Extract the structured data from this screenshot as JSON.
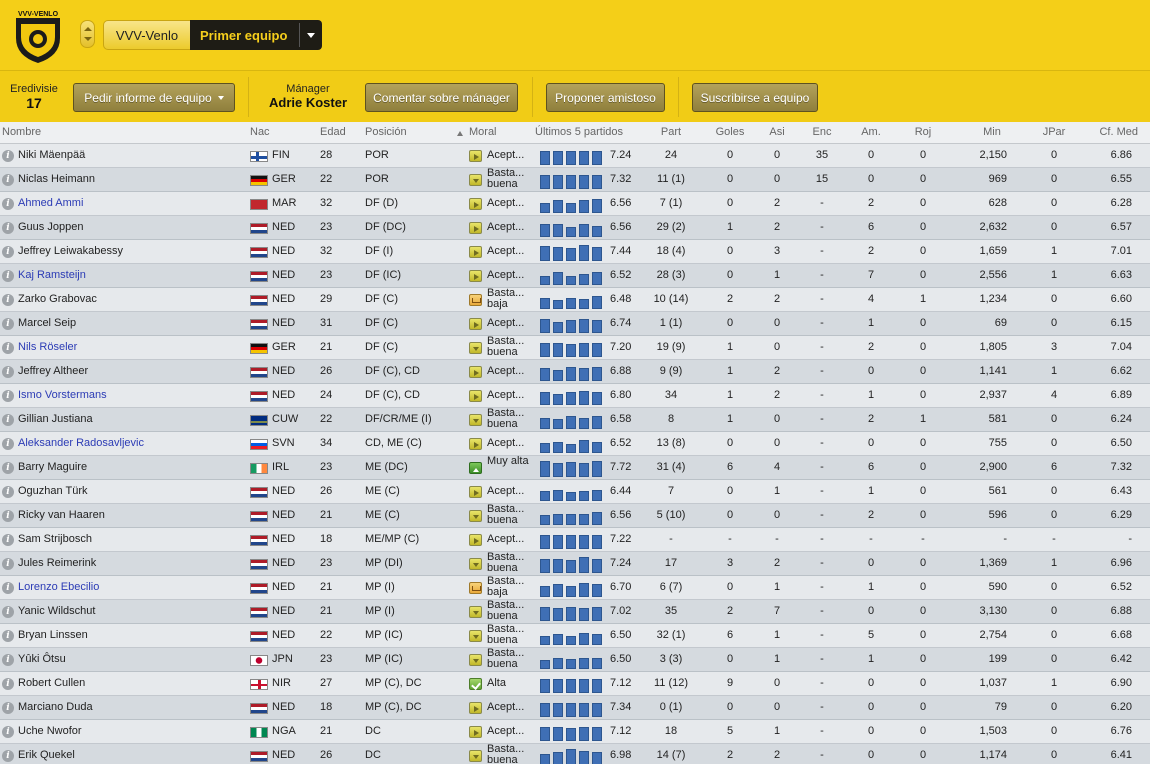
{
  "header": {
    "crest_text": "VVV-VENLO",
    "club_name": "VVV-Venlo",
    "team_selector": "Primer equipo",
    "league_name": "Eredivisie",
    "league_position": "17",
    "team_report_button": "Pedir informe de equipo",
    "manager_title": "Mánager",
    "manager_name": "Adrie Koster",
    "comment_manager_button": "Comentar sobre mánager",
    "propose_friendly_button": "Proponer amistoso",
    "subscribe_button": "Suscribirse a equipo",
    "colors": {
      "bar": "#f4cf18",
      "dark": "#1e1c15",
      "button": "#8f7f3c"
    }
  },
  "columns": {
    "name": "Nombre",
    "nat": "Nac",
    "age": "Edad",
    "position": "Posición",
    "moral": "Moral",
    "last5": "Últimos 5 partidos",
    "apps": "Part",
    "goals": "Goles",
    "assists": "Asi",
    "clean": "Enc",
    "yellow": "Am.",
    "red": "Roj",
    "minutes": "Min",
    "pom": "JPar",
    "avg": "Cf. Med"
  },
  "players": [
    {
      "name": "Niki Mäenpää",
      "link": false,
      "nat": "FIN",
      "flag": "fin",
      "age": "28",
      "pos": "POR",
      "moral": "Acept...",
      "micon": "acc",
      "bars": [
        0.8,
        0.8,
        0.8,
        0.8,
        0.8
      ],
      "last5": "7.24",
      "apps": "24",
      "goals": "0",
      "assists": "0",
      "clean": "35",
      "yellow": "0",
      "red": "0",
      "min": "2,150",
      "pom": "0",
      "avg": "6.86"
    },
    {
      "name": "Niclas Heimann",
      "link": false,
      "nat": "GER",
      "flag": "ger",
      "age": "22",
      "pos": "POR",
      "moral": "Basta... buena",
      "micon": "buena",
      "bars": [
        0.8,
        0.8,
        0.8,
        0.8,
        0.8
      ],
      "last5": "7.32",
      "apps": "11 (1)",
      "goals": "0",
      "assists": "0",
      "clean": "15",
      "yellow": "0",
      "red": "0",
      "min": "969",
      "pom": "0",
      "avg": "6.55"
    },
    {
      "name": "Ahmed Ammi",
      "link": true,
      "nat": "MAR",
      "flag": "mar",
      "age": "32",
      "pos": "DF (D)",
      "moral": "Acept...",
      "micon": "acc",
      "bars": [
        0.55,
        0.7,
        0.55,
        0.7,
        0.8
      ],
      "last5": "6.56",
      "apps": "7 (1)",
      "goals": "0",
      "assists": "2",
      "clean": "-",
      "yellow": "2",
      "red": "0",
      "min": "628",
      "pom": "0",
      "avg": "6.28"
    },
    {
      "name": "Guus Joppen",
      "link": false,
      "nat": "NED",
      "flag": "ned",
      "age": "23",
      "pos": "DF (DC)",
      "moral": "Acept...",
      "micon": "acc",
      "bars": [
        0.7,
        0.7,
        0.55,
        0.7,
        0.6
      ],
      "last5": "6.56",
      "apps": "29 (2)",
      "goals": "1",
      "assists": "2",
      "clean": "-",
      "yellow": "6",
      "red": "0",
      "min": "2,632",
      "pom": "0",
      "avg": "6.57"
    },
    {
      "name": "Jeffrey Leiwakabessy",
      "link": false,
      "nat": "NED",
      "flag": "ned",
      "age": "32",
      "pos": "DF (I)",
      "moral": "Acept...",
      "micon": "acc",
      "bars": [
        0.85,
        0.8,
        0.7,
        0.9,
        0.8
      ],
      "last5": "7.44",
      "apps": "18 (4)",
      "goals": "0",
      "assists": "3",
      "clean": "-",
      "yellow": "2",
      "red": "0",
      "min": "1,659",
      "pom": "1",
      "avg": "7.01"
    },
    {
      "name": "Kaj Ramsteijn",
      "link": true,
      "nat": "NED",
      "flag": "ned",
      "age": "23",
      "pos": "DF (IC)",
      "moral": "Acept...",
      "micon": "acc",
      "bars": [
        0.5,
        0.7,
        0.5,
        0.6,
        0.7
      ],
      "last5": "6.52",
      "apps": "28 (3)",
      "goals": "0",
      "assists": "1",
      "clean": "-",
      "yellow": "7",
      "red": "0",
      "min": "2,556",
      "pom": "1",
      "avg": "6.63"
    },
    {
      "name": "Zarko Grabovac",
      "link": false,
      "nat": "NED",
      "flag": "ned",
      "age": "29",
      "pos": "DF (C)",
      "moral": "Basta... baja",
      "micon": "baja",
      "bars": [
        0.6,
        0.5,
        0.6,
        0.55,
        0.7
      ],
      "last5": "6.48",
      "apps": "10 (14)",
      "goals": "2",
      "assists": "2",
      "clean": "-",
      "yellow": "4",
      "red": "1",
      "min": "1,234",
      "pom": "0",
      "avg": "6.60"
    },
    {
      "name": "Marcel Seip",
      "link": false,
      "nat": "NED",
      "flag": "ned",
      "age": "31",
      "pos": "DF (C)",
      "moral": "Acept...",
      "micon": "acc",
      "bars": [
        0.8,
        0.6,
        0.7,
        0.8,
        0.7
      ],
      "last5": "6.74",
      "apps": "1 (1)",
      "goals": "0",
      "assists": "0",
      "clean": "-",
      "yellow": "1",
      "red": "0",
      "min": "69",
      "pom": "0",
      "avg": "6.15"
    },
    {
      "name": "Nils Röseler",
      "link": true,
      "nat": "GER",
      "flag": "ger",
      "age": "21",
      "pos": "DF (C)",
      "moral": "Basta... buena",
      "micon": "buena",
      "bars": [
        0.8,
        0.8,
        0.7,
        0.8,
        0.8
      ],
      "last5": "7.20",
      "apps": "19 (9)",
      "goals": "1",
      "assists": "0",
      "clean": "-",
      "yellow": "2",
      "red": "0",
      "min": "1,805",
      "pom": "3",
      "avg": "7.04"
    },
    {
      "name": "Jeffrey Altheer",
      "link": false,
      "nat": "NED",
      "flag": "ned",
      "age": "26",
      "pos": "DF (C), CD",
      "moral": "Acept...",
      "micon": "acc",
      "bars": [
        0.7,
        0.6,
        0.8,
        0.7,
        0.8
      ],
      "last5": "6.88",
      "apps": "9 (9)",
      "goals": "1",
      "assists": "2",
      "clean": "-",
      "yellow": "0",
      "red": "0",
      "min": "1,141",
      "pom": "1",
      "avg": "6.62"
    },
    {
      "name": "Ismo Vorstermans",
      "link": true,
      "nat": "NED",
      "flag": "ned",
      "age": "24",
      "pos": "DF (C), CD",
      "moral": "Acept...",
      "micon": "acc",
      "bars": [
        0.7,
        0.6,
        0.7,
        0.8,
        0.7
      ],
      "last5": "6.80",
      "apps": "34",
      "goals": "1",
      "assists": "2",
      "clean": "-",
      "yellow": "1",
      "red": "0",
      "min": "2,937",
      "pom": "4",
      "avg": "6.89"
    },
    {
      "name": "Gillian Justiana",
      "link": false,
      "nat": "CUW",
      "flag": "cuw",
      "age": "22",
      "pos": "DF/CR/ME (I)",
      "moral": "Basta... buena",
      "micon": "buena",
      "bars": [
        0.6,
        0.55,
        0.7,
        0.6,
        0.7
      ],
      "last5": "6.58",
      "apps": "8",
      "goals": "1",
      "assists": "0",
      "clean": "-",
      "yellow": "2",
      "red": "1",
      "min": "581",
      "pom": "0",
      "avg": "6.24"
    },
    {
      "name": "Aleksander Radosavljevic",
      "link": true,
      "nat": "SVN",
      "flag": "svn",
      "age": "34",
      "pos": "CD, ME (C)",
      "moral": "Acept...",
      "micon": "acc",
      "bars": [
        0.55,
        0.6,
        0.5,
        0.7,
        0.6
      ],
      "last5": "6.52",
      "apps": "13 (8)",
      "goals": "0",
      "assists": "0",
      "clean": "-",
      "yellow": "0",
      "red": "0",
      "min": "755",
      "pom": "0",
      "avg": "6.50"
    },
    {
      "name": "Barry Maguire",
      "link": false,
      "nat": "IRL",
      "flag": "irl",
      "age": "23",
      "pos": "ME (DC)",
      "moral": "Muy alta",
      "micon": "muyalta",
      "bars": [
        0.9,
        0.8,
        0.85,
        0.8,
        0.9
      ],
      "last5": "7.72",
      "apps": "31 (4)",
      "goals": "6",
      "assists": "4",
      "clean": "-",
      "yellow": "6",
      "red": "0",
      "min": "2,900",
      "pom": "6",
      "avg": "7.32"
    },
    {
      "name": "Oguzhan Türk",
      "link": false,
      "nat": "NED",
      "flag": "ned",
      "age": "26",
      "pos": "ME (C)",
      "moral": "Acept...",
      "micon": "acc",
      "bars": [
        0.55,
        0.6,
        0.5,
        0.55,
        0.6
      ],
      "last5": "6.44",
      "apps": "7",
      "goals": "0",
      "assists": "1",
      "clean": "-",
      "yellow": "1",
      "red": "0",
      "min": "561",
      "pom": "0",
      "avg": "6.43"
    },
    {
      "name": "Ricky van Haaren",
      "link": false,
      "nat": "NED",
      "flag": "ned",
      "age": "21",
      "pos": "ME (C)",
      "moral": "Basta... buena",
      "micon": "buena",
      "bars": [
        0.55,
        0.6,
        0.6,
        0.6,
        0.7
      ],
      "last5": "6.56",
      "apps": "5 (10)",
      "goals": "0",
      "assists": "0",
      "clean": "-",
      "yellow": "2",
      "red": "0",
      "min": "596",
      "pom": "0",
      "avg": "6.29"
    },
    {
      "name": "Sam Strijbosch",
      "link": false,
      "nat": "NED",
      "flag": "ned",
      "age": "18",
      "pos": "ME/MP (C)",
      "moral": "Acept...",
      "micon": "acc",
      "bars": [
        0.8,
        0.8,
        0.8,
        0.8,
        0.8
      ],
      "last5": "7.22",
      "apps": "-",
      "goals": "-",
      "assists": "-",
      "clean": "-",
      "yellow": "-",
      "red": "-",
      "min": "-",
      "pom": "-",
      "avg": "-"
    },
    {
      "name": "Jules Reimerink",
      "link": false,
      "nat": "NED",
      "flag": "ned",
      "age": "23",
      "pos": "MP (DI)",
      "moral": "Basta... buena",
      "micon": "buena",
      "bars": [
        0.8,
        0.8,
        0.7,
        0.9,
        0.8
      ],
      "last5": "7.24",
      "apps": "17",
      "goals": "3",
      "assists": "2",
      "clean": "-",
      "yellow": "0",
      "red": "0",
      "min": "1,369",
      "pom": "1",
      "avg": "6.96"
    },
    {
      "name": "Lorenzo Ebecilio",
      "link": true,
      "nat": "NED",
      "flag": "ned",
      "age": "21",
      "pos": "MP (I)",
      "moral": "Basta... baja",
      "micon": "baja",
      "bars": [
        0.6,
        0.7,
        0.6,
        0.8,
        0.7
      ],
      "last5": "6.70",
      "apps": "6 (7)",
      "goals": "0",
      "assists": "1",
      "clean": "-",
      "yellow": "1",
      "red": "0",
      "min": "590",
      "pom": "0",
      "avg": "6.52"
    },
    {
      "name": "Yanic Wildschut",
      "link": false,
      "nat": "NED",
      "flag": "ned",
      "age": "21",
      "pos": "MP (I)",
      "moral": "Basta... buena",
      "micon": "buena",
      "bars": [
        0.8,
        0.7,
        0.8,
        0.7,
        0.8
      ],
      "last5": "7.02",
      "apps": "35",
      "goals": "2",
      "assists": "7",
      "clean": "-",
      "yellow": "0",
      "red": "0",
      "min": "3,130",
      "pom": "0",
      "avg": "6.88"
    },
    {
      "name": "Bryan Linssen",
      "link": false,
      "nat": "NED",
      "flag": "ned",
      "age": "22",
      "pos": "MP (IC)",
      "moral": "Basta... buena",
      "micon": "buena",
      "bars": [
        0.5,
        0.6,
        0.5,
        0.65,
        0.6
      ],
      "last5": "6.50",
      "apps": "32 (1)",
      "goals": "6",
      "assists": "1",
      "clean": "-",
      "yellow": "5",
      "red": "0",
      "min": "2,754",
      "pom": "0",
      "avg": "6.68"
    },
    {
      "name": "Yûki Ôtsu",
      "link": false,
      "nat": "JPN",
      "flag": "jpn",
      "age": "23",
      "pos": "MP (IC)",
      "moral": "Basta... buena",
      "micon": "buena",
      "bars": [
        0.5,
        0.6,
        0.55,
        0.6,
        0.6
      ],
      "last5": "6.50",
      "apps": "3 (3)",
      "goals": "0",
      "assists": "1",
      "clean": "-",
      "yellow": "1",
      "red": "0",
      "min": "199",
      "pom": "0",
      "avg": "6.42"
    },
    {
      "name": "Robert Cullen",
      "link": false,
      "nat": "NIR",
      "flag": "nir",
      "age": "27",
      "pos": "MP (C), DC",
      "moral": "Alta",
      "micon": "alta",
      "bars": [
        0.8,
        0.75,
        0.8,
        0.8,
        0.8
      ],
      "last5": "7.12",
      "apps": "11 (12)",
      "goals": "9",
      "assists": "0",
      "clean": "-",
      "yellow": "0",
      "red": "0",
      "min": "1,037",
      "pom": "1",
      "avg": "6.90"
    },
    {
      "name": "Marciano Duda",
      "link": false,
      "nat": "NED",
      "flag": "ned",
      "age": "18",
      "pos": "MP (C), DC",
      "moral": "Acept...",
      "micon": "acc",
      "bars": [
        0.8,
        0.8,
        0.8,
        0.8,
        0.8
      ],
      "last5": "7.34",
      "apps": "0 (1)",
      "goals": "0",
      "assists": "0",
      "clean": "-",
      "yellow": "0",
      "red": "0",
      "min": "79",
      "pom": "0",
      "avg": "6.20"
    },
    {
      "name": "Uche Nwofor",
      "link": false,
      "nat": "NGA",
      "flag": "nga",
      "age": "21",
      "pos": "DC",
      "moral": "Acept...",
      "micon": "acc",
      "bars": [
        0.8,
        0.75,
        0.7,
        0.8,
        0.8
      ],
      "last5": "7.12",
      "apps": "18",
      "goals": "5",
      "assists": "1",
      "clean": "-",
      "yellow": "0",
      "red": "0",
      "min": "1,503",
      "pom": "0",
      "avg": "6.76"
    },
    {
      "name": "Erik Quekel",
      "link": false,
      "nat": "NED",
      "flag": "ned",
      "age": "26",
      "pos": "DC",
      "moral": "Basta... buena",
      "micon": "buena",
      "bars": [
        0.6,
        0.7,
        0.9,
        0.8,
        0.7
      ],
      "last5": "6.98",
      "apps": "14 (7)",
      "goals": "2",
      "assists": "2",
      "clean": "-",
      "yellow": "0",
      "red": "0",
      "min": "1,174",
      "pom": "0",
      "avg": "6.41"
    }
  ]
}
